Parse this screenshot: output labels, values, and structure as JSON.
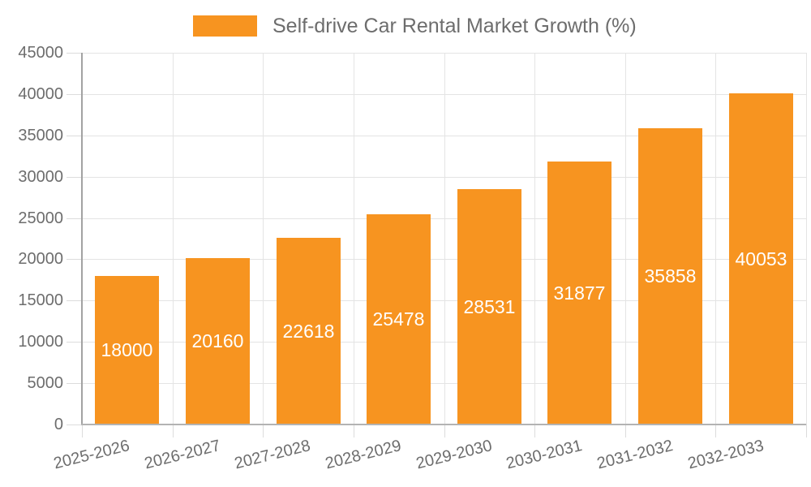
{
  "legend": {
    "label": "Self-drive Car Rental Market Growth (%)"
  },
  "chart_data": {
    "type": "bar",
    "title": "Self-drive Car Rental Market Growth (%)",
    "categories": [
      "2025-2026",
      "2026-2027",
      "2027-2028",
      "2028-2029",
      "2029-2030",
      "2030-2031",
      "2031-2032",
      "2032-2033"
    ],
    "values": [
      18000,
      20160,
      22618,
      25478,
      28531,
      31877,
      35858,
      40053
    ],
    "xlabel": "",
    "ylabel": "",
    "ylim": [
      0,
      45000
    ],
    "ytick_step": 5000,
    "ytick_labels": [
      "0",
      "5000",
      "10000",
      "15000",
      "20000",
      "25000",
      "30000",
      "35000",
      "40000",
      "45000"
    ],
    "grid": true,
    "legend_position": "top-center",
    "bar_color": "#f79420",
    "bar_label_color": "#ffffff",
    "axis_text_color": "#6d6d6d",
    "value_labels_shown": true
  }
}
